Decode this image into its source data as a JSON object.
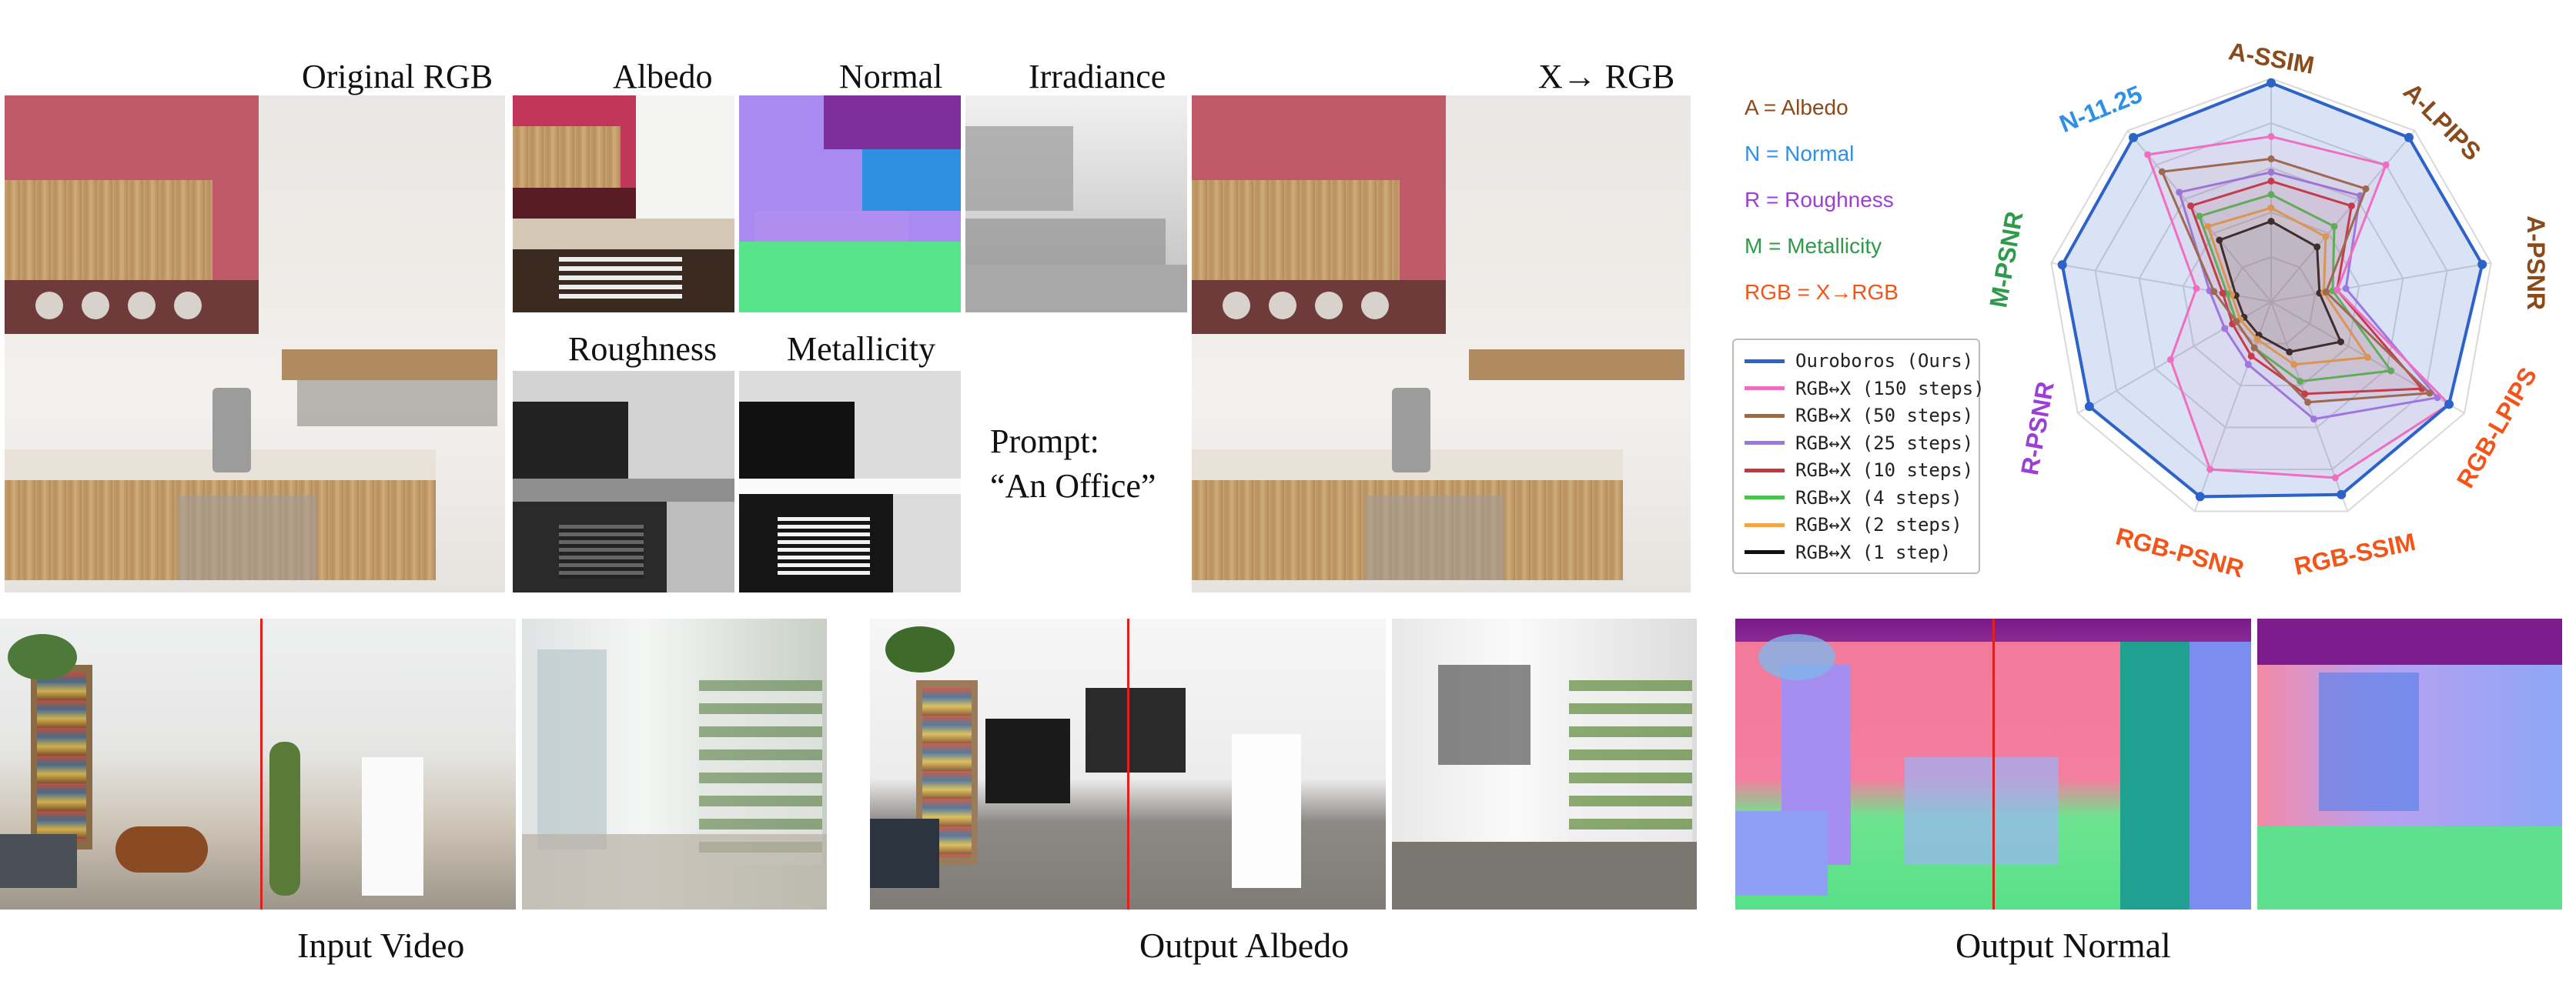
{
  "top_row": {
    "original_label": "Original RGB",
    "albedo_label": "Albedo",
    "normal_label": "Normal",
    "irradiance_label": "Irradiance",
    "roughness_label": "Roughness",
    "metallicity_label": "Metallicity",
    "x_to_rgb_label": "X→ RGB",
    "prompt_line1": "Prompt:",
    "prompt_line2": "“An Office”"
  },
  "bottom_row": {
    "input_caption": "Input Video",
    "albedo_caption": "Output Albedo",
    "normal_caption": "Output Normal"
  },
  "key": [
    {
      "text": "A = Albedo",
      "color": "#8B4A1A"
    },
    {
      "text": "N = Normal",
      "color": "#2E8FE6"
    },
    {
      "text": "R = Roughness",
      "color": "#9B3FD6"
    },
    {
      "text": "M = Metallicity",
      "color": "#2E9A4A"
    },
    {
      "text": "RGB = X→RGB",
      "color": "#F2551A"
    }
  ],
  "chart_data": {
    "type": "radar",
    "axes": [
      {
        "name": "A-SSIM",
        "color": "#8B4A1A"
      },
      {
        "name": "A-LPIPS",
        "color": "#8B4A1A"
      },
      {
        "name": "A-PSNR",
        "color": "#8B4A1A"
      },
      {
        "name": "RGB-LPIPS",
        "color": "#F2551A"
      },
      {
        "name": "RGB-SSIM",
        "color": "#F2551A"
      },
      {
        "name": "RGB-PSNR",
        "color": "#F2551A"
      },
      {
        "name": "R-PSNR",
        "color": "#9B3FD6"
      },
      {
        "name": "M-PSNR",
        "color": "#2E9A4A"
      },
      {
        "name": "N-11.25",
        "color": "#2E8FE6"
      }
    ],
    "range": [
      0,
      1
    ],
    "series": [
      {
        "name": "Ouroboros (Ours)",
        "color": "#2D63C8",
        "fill": true,
        "values": [
          0.98,
          0.96,
          0.96,
          0.92,
          0.92,
          0.93,
          0.94,
          0.95,
          0.96
        ]
      },
      {
        "name": "RGB↔X (150 steps)",
        "color": "#F06EC0",
        "values": [
          0.74,
          0.8,
          0.3,
          0.92,
          0.84,
          0.8,
          0.52,
          0.34,
          0.86
        ]
      },
      {
        "name": "RGB↔X (50 steps)",
        "color": "#9A6A4A",
        "values": [
          0.64,
          0.66,
          0.25,
          0.82,
          0.48,
          0.22,
          0.18,
          0.26,
          0.76
        ]
      },
      {
        "name": "RGB↔X (25 steps)",
        "color": "#9B77E0",
        "values": [
          0.58,
          0.62,
          0.34,
          0.86,
          0.56,
          0.3,
          0.24,
          0.28,
          0.64
        ]
      },
      {
        "name": "RGB↔X (10 steps)",
        "color": "#C8353C",
        "values": [
          0.54,
          0.56,
          0.3,
          0.78,
          0.44,
          0.26,
          0.2,
          0.22,
          0.56
        ]
      },
      {
        "name": "RGB↔X (4 steps)",
        "color": "#4CC24E",
        "values": [
          0.48,
          0.44,
          0.28,
          0.62,
          0.38,
          0.22,
          0.18,
          0.2,
          0.5
        ]
      },
      {
        "name": "RGB↔X (2 steps)",
        "color": "#F2A447",
        "values": [
          0.42,
          0.38,
          0.24,
          0.5,
          0.3,
          0.18,
          0.16,
          0.18,
          0.44
        ]
      },
      {
        "name": "RGB↔X (1 step)",
        "color": "#111111",
        "values": [
          0.36,
          0.32,
          0.22,
          0.36,
          0.24,
          0.16,
          0.14,
          0.16,
          0.36
        ]
      }
    ],
    "grid": true
  }
}
